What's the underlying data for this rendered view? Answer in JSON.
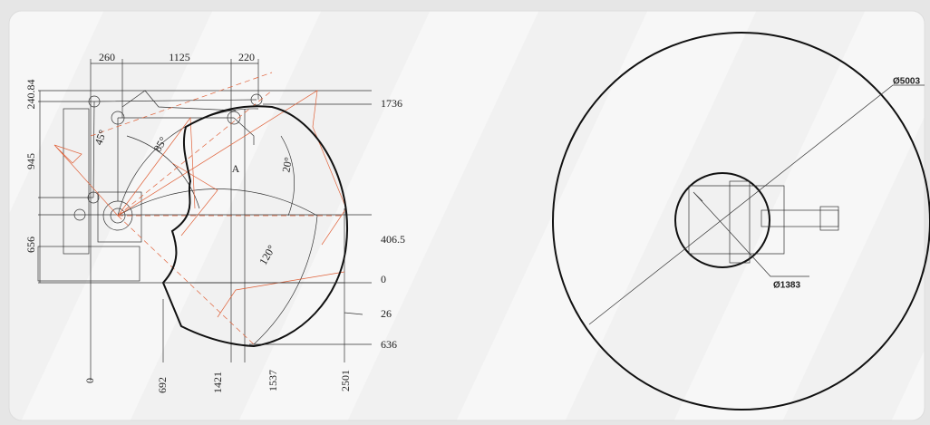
{
  "left_view": {
    "labels": [
      "260",
      "1125",
      "220",
      "240.84",
      "945",
      "656",
      "1736",
      "406.5",
      "0",
      "26",
      "636",
      "0",
      "692",
      "1421",
      "1537",
      "2501",
      "45°",
      "85°",
      "20°",
      "120°",
      "A"
    ]
  },
  "right_view": {
    "labels": [
      "Ø5003",
      "Ø1383"
    ]
  }
}
